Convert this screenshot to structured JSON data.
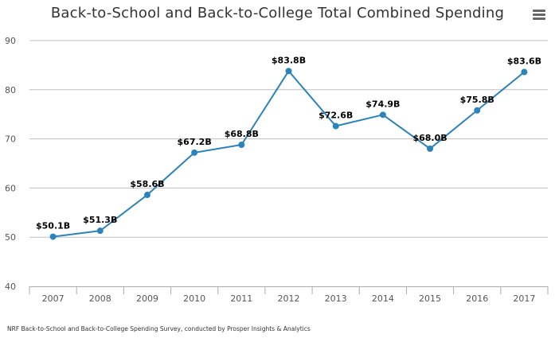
{
  "chart_data": {
    "type": "line",
    "title": "Back-to-School and Back-to-College Total Combined Spending",
    "categories": [
      "2007",
      "2008",
      "2009",
      "2010",
      "2011",
      "2012",
      "2013",
      "2014",
      "2015",
      "2016",
      "2017"
    ],
    "series": [
      {
        "values": [
          50.1,
          51.3,
          58.6,
          67.2,
          68.8,
          83.8,
          72.6,
          74.9,
          68.0,
          75.8,
          83.6
        ],
        "labels": [
          "$50.1B",
          "$51.3B",
          "$58.6B",
          "$67.2B",
          "$68.8B",
          "$83.8B",
          "$72.6B",
          "$74.9B",
          "$68.0B",
          "$75.8B",
          "$83.6B"
        ],
        "color": "#2b83ba"
      }
    ],
    "ylim": [
      40,
      90
    ],
    "yticks": [
      40,
      50,
      60,
      70,
      80,
      90
    ],
    "grid": true,
    "legend": "none"
  },
  "source_note": "NRF Back-to-School and Back-to-College Spending Survey, conducted by Prosper Insights & Analytics",
  "menu_icon": "hamburger-menu-icon",
  "colors": {
    "line": "#2b83ba",
    "grid": "#c0c0c0",
    "axis": "#aaaaaa",
    "title": "#333333"
  }
}
